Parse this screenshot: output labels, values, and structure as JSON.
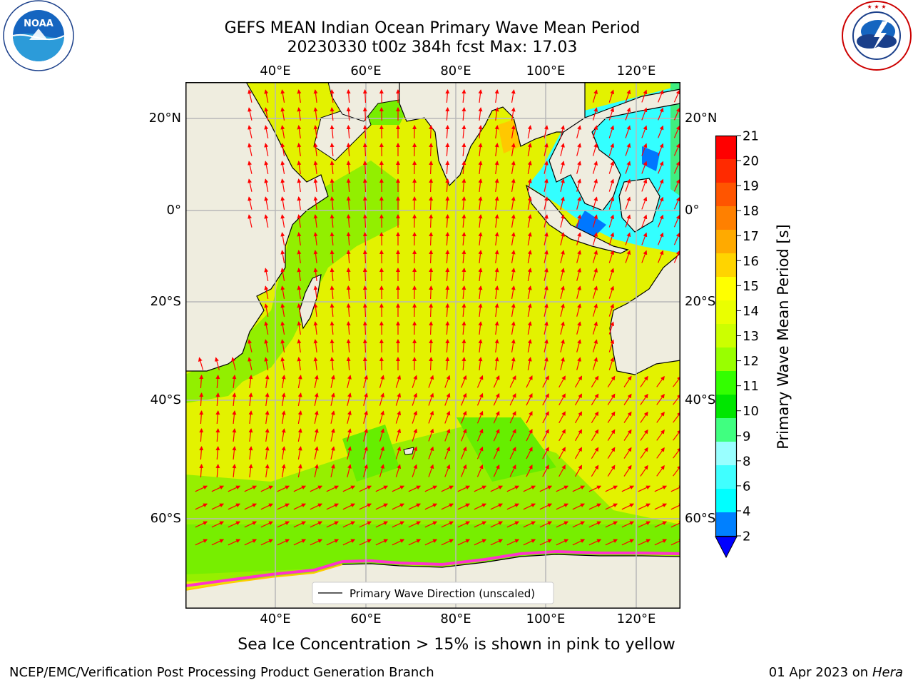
{
  "header": {
    "title_line1": "GEFS MEAN Indian Ocean Primary Wave Mean Period",
    "title_line2": "20230330 t00z 384h fcst   Max: 17.03"
  },
  "logos": {
    "noaa": {
      "text": "NOAA",
      "ring_text": "NATIONAL OCEANIC AND ATMOSPHERIC ADMINISTRATION · U.S. DEPARTMENT OF COMMERCE"
    },
    "nws": {
      "ring_text": "NATIONAL WEATHER SERVICE"
    }
  },
  "map": {
    "lon_labels": [
      "40°E",
      "60°E",
      "80°E",
      "100°E",
      "120°E"
    ],
    "lat_labels": [
      "20°N",
      "0°",
      "20°S",
      "40°S",
      "60°S"
    ],
    "lon_range": [
      20,
      130
    ],
    "lat_range": [
      -72,
      28
    ],
    "grid": true,
    "legend": "Primary Wave Direction (unscaled)",
    "colors": {
      "land": "#efeddf",
      "ocean_main": "#e3f200",
      "arrow": "#ff0000",
      "coast": "#000000"
    }
  },
  "colorbar": {
    "label": "Primary Wave Mean Period [s]",
    "ticks": [
      "21",
      "20",
      "19",
      "18",
      "17",
      "16",
      "15",
      "14",
      "13",
      "12",
      "11",
      "10",
      "9",
      "8",
      "6",
      "4",
      "2"
    ],
    "colors": [
      "#ff0000",
      "#ff2a00",
      "#ff5500",
      "#ff8000",
      "#ffaa00",
      "#ffd400",
      "#ffff00",
      "#eaff00",
      "#ccff00",
      "#99ff00",
      "#33ff00",
      "#00e600",
      "#40ff80",
      "#99ffff",
      "#40ffff",
      "#00ffff",
      "#0080ff"
    ],
    "extend_color": "#0000ff"
  },
  "subtitle": "Sea Ice Concentration > 15% is shown in pink to yellow",
  "footer": {
    "left": "NCEP/EMC/Verification Post Processing Product Generation Branch",
    "date": "01 Apr 2023 on",
    "machine": "Hera"
  }
}
